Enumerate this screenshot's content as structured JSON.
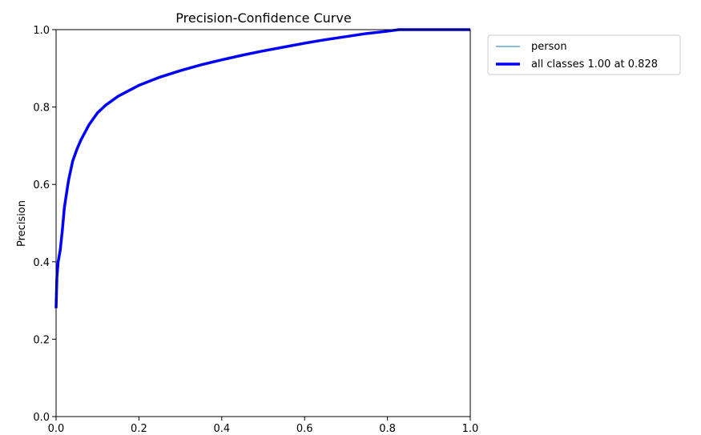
{
  "chart_data": {
    "type": "line",
    "title": "Precision-Confidence Curve",
    "xlabel": "",
    "ylabel": "Precision",
    "xlim": [
      0.0,
      1.0
    ],
    "ylim": [
      0.0,
      1.0
    ],
    "xticks": [
      "0.0",
      "0.2",
      "0.4",
      "0.6",
      "0.8",
      "1.0"
    ],
    "yticks": [
      "0.0",
      "0.2",
      "0.4",
      "0.6",
      "0.8",
      "1.0"
    ],
    "grid": false,
    "legend_position": "outside-top-right",
    "series": [
      {
        "name": "person",
        "color": "#1f77b4",
        "style": "thin",
        "x": [
          0.0,
          0.002,
          0.005,
          0.01,
          0.015,
          0.02,
          0.03,
          0.04,
          0.05,
          0.06,
          0.08,
          0.1,
          0.12,
          0.15,
          0.2,
          0.25,
          0.3,
          0.35,
          0.4,
          0.45,
          0.5,
          0.55,
          0.6,
          0.65,
          0.7,
          0.75,
          0.8,
          0.828,
          0.85,
          0.9,
          0.95,
          1.0
        ],
        "y": [
          0.28,
          0.36,
          0.4,
          0.43,
          0.48,
          0.54,
          0.61,
          0.66,
          0.69,
          0.715,
          0.755,
          0.785,
          0.805,
          0.828,
          0.856,
          0.877,
          0.894,
          0.909,
          0.922,
          0.934,
          0.945,
          0.955,
          0.965,
          0.974,
          0.982,
          0.99,
          0.996,
          1.0,
          1.0,
          1.0,
          1.0,
          1.0
        ]
      },
      {
        "name": "all classes 1.00 at 0.828",
        "color": "#0000ff",
        "style": "thick",
        "x": [
          0.0,
          0.002,
          0.005,
          0.01,
          0.015,
          0.02,
          0.03,
          0.04,
          0.05,
          0.06,
          0.08,
          0.1,
          0.12,
          0.15,
          0.2,
          0.25,
          0.3,
          0.35,
          0.4,
          0.45,
          0.5,
          0.55,
          0.6,
          0.65,
          0.7,
          0.75,
          0.8,
          0.828,
          0.85,
          0.9,
          0.95,
          1.0
        ],
        "y": [
          0.28,
          0.36,
          0.4,
          0.43,
          0.48,
          0.54,
          0.61,
          0.66,
          0.69,
          0.715,
          0.755,
          0.785,
          0.805,
          0.828,
          0.856,
          0.877,
          0.894,
          0.909,
          0.922,
          0.934,
          0.945,
          0.955,
          0.965,
          0.974,
          0.982,
          0.99,
          0.996,
          1.0,
          1.0,
          1.0,
          1.0,
          1.0
        ]
      }
    ]
  }
}
